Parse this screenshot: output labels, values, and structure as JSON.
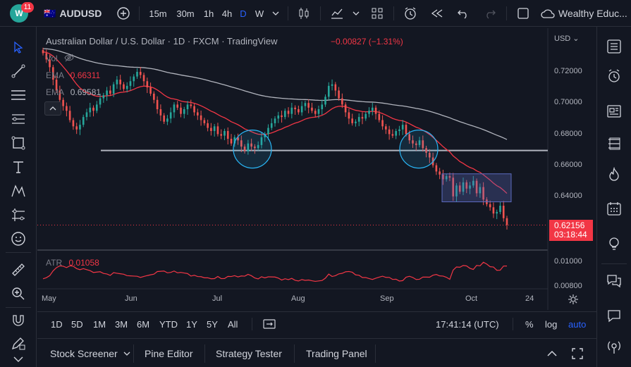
{
  "topbar": {
    "avatar_badge": "11",
    "symbol": "AUDUSD",
    "intervals": [
      "15m",
      "30m",
      "1h",
      "4h",
      "D",
      "W"
    ],
    "active_interval": "D",
    "account_label": "Wealthy Educ..."
  },
  "chart": {
    "title": "Australian Dollar / U.S. Dollar · 1D · FXCM · TradingView",
    "change": "−0.00827 (−1.31%)",
    "currency": "USD",
    "vol_label": "Vol",
    "ema1_label": "EMA",
    "ema1_value": "0.66311",
    "ema2_label": "EMA",
    "ema2_value": "0.69581",
    "price_labels": [
      "0.72000",
      "0.70000",
      "0.68000",
      "0.66000",
      "0.64000"
    ],
    "current_price": "0.62156",
    "countdown": "03:18:44",
    "atr_label": "ATR",
    "atr_value": "0.01058",
    "atr_labels": [
      "0.01000",
      "0.00800"
    ],
    "time_labels": [
      "May",
      "Jun",
      "Jul",
      "Aug",
      "Sep",
      "Oct",
      "24"
    ],
    "colors": {
      "up": "#26a69a",
      "down": "#ef5350",
      "ema_fast": "#f23645",
      "ema_slow": "#b2b5be",
      "atr": "#f23645",
      "price_tag": "#f23645",
      "circle": "#29b6f6",
      "box": "#5c6bc0"
    }
  },
  "chart_data": {
    "type": "candlestick",
    "title": "Australian Dollar / U.S. Dollar · 1D · FXCM · TradingView",
    "ylim": [
      0.615,
      0.735
    ],
    "x_range": [
      "May",
      "Oct"
    ],
    "closes": [
      0.732,
      0.728,
      0.723,
      0.715,
      0.708,
      0.702,
      0.698,
      0.695,
      0.689,
      0.685,
      0.683,
      0.686,
      0.691,
      0.694,
      0.697,
      0.695,
      0.699,
      0.703,
      0.705,
      0.708,
      0.706,
      0.712,
      0.715,
      0.712,
      0.709,
      0.711,
      0.714,
      0.717,
      0.72,
      0.718,
      0.714,
      0.71,
      0.706,
      0.702,
      0.696,
      0.692,
      0.688,
      0.69,
      0.694,
      0.699,
      0.697,
      0.693,
      0.696,
      0.699,
      0.698,
      0.694,
      0.692,
      0.689,
      0.687,
      0.684,
      0.682,
      0.685,
      0.68,
      0.679,
      0.682,
      0.677,
      0.674,
      0.678,
      0.676,
      0.672,
      0.669,
      0.674,
      0.672,
      0.671,
      0.673,
      0.678,
      0.68,
      0.684,
      0.687,
      0.69,
      0.692,
      0.691,
      0.695,
      0.693,
      0.697,
      0.696,
      0.694,
      0.698,
      0.7,
      0.697,
      0.695,
      0.693,
      0.696,
      0.699,
      0.704,
      0.711,
      0.712,
      0.708,
      0.703,
      0.699,
      0.694,
      0.69,
      0.687,
      0.688,
      0.691,
      0.69,
      0.693,
      0.695,
      0.697,
      0.693,
      0.689,
      0.685,
      0.683,
      0.68,
      0.679,
      0.682,
      0.683,
      0.686,
      0.68,
      0.676,
      0.674,
      0.673,
      0.676,
      0.671,
      0.668,
      0.665,
      0.66,
      0.656,
      0.654,
      0.651,
      0.653,
      0.652,
      0.64,
      0.647,
      0.643,
      0.649,
      0.645,
      0.647,
      0.65,
      0.642,
      0.646,
      0.638,
      0.635,
      0.633,
      0.629,
      0.63,
      0.634,
      0.626,
      0.6216
    ],
    "series": [
      {
        "name": "EMA",
        "value": 0.66311
      },
      {
        "name": "EMA",
        "value": 0.69581
      },
      {
        "name": "ATR",
        "value": 0.01058
      }
    ],
    "support_level": 0.6695,
    "range_box": {
      "low": 0.6365,
      "high": 0.6545
    }
  },
  "rangebar": {
    "ranges": [
      "1D",
      "5D",
      "1M",
      "3M",
      "6M",
      "YTD",
      "1Y",
      "5Y",
      "All"
    ],
    "clock": "17:41:14 (UTC)",
    "percent": "%",
    "log": "log",
    "auto": "auto"
  },
  "panelbar": {
    "tabs": [
      "Stock Screener",
      "Pine Editor",
      "Strategy Tester",
      "Trading Panel"
    ]
  }
}
